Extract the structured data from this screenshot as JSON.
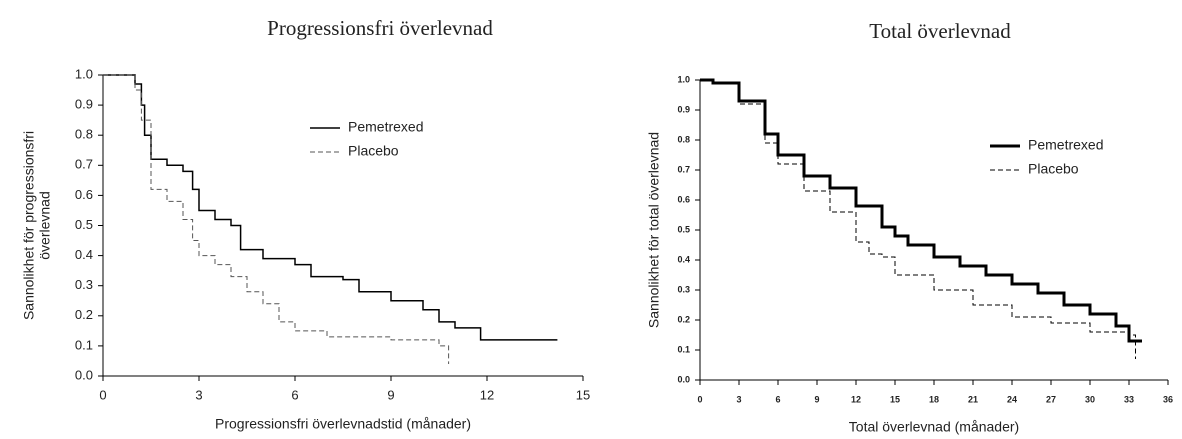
{
  "chart_data": [
    {
      "type": "line",
      "step": true,
      "title": "Progressionsfri överlevnad",
      "x_label": "Progressionsfri överlevnadstid (månader)",
      "y_label": [
        "Sannolikhet för progressionsfri",
        "överlevnad"
      ],
      "xlim": [
        0,
        15
      ],
      "xticks": [
        0,
        3,
        6,
        9,
        12,
        15
      ],
      "ylim": [
        0,
        1
      ],
      "yticks": [
        {
          "value": 0,
          "label": "0.0"
        },
        0.1,
        0.2,
        0.3,
        0.4,
        0.5,
        0.6,
        0.7,
        0.8,
        0.9,
        {
          "value": 1,
          "label": "1.0"
        }
      ],
      "grid": false,
      "legend": "upper right",
      "series": [
        {
          "name": "Pemetrexed",
          "color": "#000000",
          "line_width": 1.5,
          "dashed": false,
          "x": [
            0,
            0.9,
            1.0,
            1.2,
            1.3,
            1.5,
            2.0,
            2.5,
            2.8,
            3.0,
            3.5,
            4.0,
            4.3,
            5.0,
            6.0,
            6.5,
            7.5,
            8.0,
            9.0,
            10.0,
            10.5,
            11.0,
            11.8,
            14.2
          ],
          "values": [
            1.0,
            1.0,
            0.97,
            0.9,
            0.8,
            0.72,
            0.7,
            0.68,
            0.62,
            0.55,
            0.52,
            0.5,
            0.42,
            0.39,
            0.37,
            0.33,
            0.32,
            0.28,
            0.25,
            0.22,
            0.18,
            0.16,
            0.12,
            0.12
          ]
        },
        {
          "name": "Placebo",
          "color": "#555555",
          "line_width": 1,
          "dashed": true,
          "x": [
            0,
            1.0,
            1.2,
            1.5,
            2.0,
            2.5,
            2.8,
            3.0,
            3.5,
            4.0,
            4.5,
            5.0,
            5.5,
            6.0,
            7.0,
            9.0,
            10.5,
            10.8
          ],
          "values": [
            1.0,
            0.95,
            0.85,
            0.62,
            0.58,
            0.52,
            0.45,
            0.4,
            0.37,
            0.33,
            0.28,
            0.24,
            0.18,
            0.15,
            0.13,
            0.12,
            0.1,
            0.04
          ]
        }
      ]
    },
    {
      "type": "line",
      "step": true,
      "title": "Total överlevnad",
      "x_label": "Total överlevnad (månader)",
      "y_label": [
        "Sannolikhet för total överlevnad"
      ],
      "xlim": [
        0,
        36
      ],
      "xticks": [
        0,
        3,
        6,
        9,
        12,
        15,
        18,
        21,
        24,
        27,
        30,
        33,
        36
      ],
      "ylim": [
        0,
        1
      ],
      "yticks": [
        {
          "value": 0,
          "label": "0.0"
        },
        0.1,
        0.2,
        0.3,
        0.4,
        0.5,
        0.6,
        0.7,
        0.8,
        0.9,
        {
          "value": 1,
          "label": "1.0"
        }
      ],
      "grid": false,
      "legend": "upper right",
      "series": [
        {
          "name": "Pemetrexed",
          "color": "#000000",
          "line_width": 3,
          "dashed": false,
          "x": [
            0,
            1,
            3,
            5,
            6,
            8,
            10,
            12,
            14,
            15,
            16,
            18,
            20,
            22,
            24,
            26,
            28,
            30,
            32,
            33,
            34
          ],
          "values": [
            1.0,
            0.99,
            0.93,
            0.82,
            0.75,
            0.68,
            0.64,
            0.58,
            0.51,
            0.48,
            0.45,
            0.41,
            0.38,
            0.35,
            0.32,
            0.29,
            0.25,
            0.22,
            0.18,
            0.13,
            0.13
          ]
        },
        {
          "name": "Placebo",
          "color": "#000000",
          "line_width": 1,
          "dashed": true,
          "x": [
            0,
            1,
            3,
            5,
            6,
            8,
            10,
            12,
            13,
            14,
            15,
            18,
            21,
            24,
            27,
            30,
            33,
            33.5
          ],
          "values": [
            1.0,
            0.99,
            0.92,
            0.79,
            0.72,
            0.63,
            0.56,
            0.46,
            0.42,
            0.41,
            0.35,
            0.3,
            0.25,
            0.21,
            0.19,
            0.16,
            0.15,
            0.07
          ]
        }
      ]
    }
  ]
}
